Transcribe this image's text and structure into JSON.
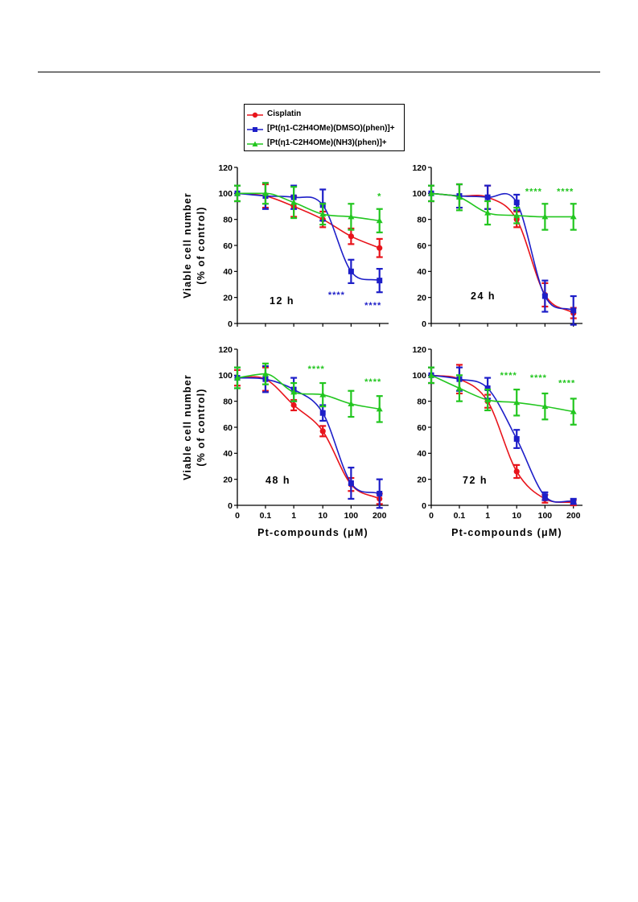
{
  "legend": {
    "items": [
      {
        "label": "Cisplatin",
        "color": "#e8141b",
        "marker": "circle"
      },
      {
        "label": "[Pt(η1-C2H4OMe)(DMSO)(phen)]+",
        "color": "#1d1ec8",
        "marker": "square"
      },
      {
        "label": "[Pt(η1-C2H4OMe)(NH3)(phen)]+",
        "color": "#22c61f",
        "marker": "triangle"
      }
    ]
  },
  "chart_data": [
    {
      "type": "line",
      "panel_label": "12 h",
      "x": [
        "0",
        "0.1",
        "1",
        "10",
        "100",
        "200"
      ],
      "ylabel": "Viable cell number (% of control)",
      "xlabel": "",
      "ylim": [
        0,
        120
      ],
      "yticks": [
        0,
        20,
        40,
        60,
        80,
        100,
        120
      ],
      "series": [
        {
          "name": "Cisplatin",
          "values": [
            100,
            98,
            90,
            80,
            67,
            58
          ],
          "errors": [
            6,
            9,
            8,
            6,
            6,
            7
          ]
        },
        {
          "name": "[Pt(η1-C2H4OMe)(DMSO)(phen)]+",
          "values": [
            100,
            98,
            97,
            91,
            40,
            33
          ],
          "errors": [
            6,
            10,
            9,
            12,
            9,
            9
          ]
        },
        {
          "name": "[Pt(η1-C2H4OMe)(NH3)(phen)]+",
          "values": [
            100,
            100,
            93,
            84,
            82,
            79
          ],
          "errors": [
            6,
            8,
            12,
            8,
            10,
            9
          ]
        }
      ],
      "annotations": [
        {
          "text": "*",
          "x": "200",
          "color": "#22c61f"
        },
        {
          "text": "****",
          "x": "100",
          "color": "#1d1ec8"
        },
        {
          "text": "****",
          "x": "200",
          "color": "#1d1ec8"
        }
      ]
    },
    {
      "type": "line",
      "panel_label": "24 h",
      "x": [
        "0",
        "0.1",
        "1",
        "10",
        "100",
        "200"
      ],
      "ylabel": "",
      "xlabel": "",
      "ylim": [
        0,
        120
      ],
      "yticks": [
        0,
        20,
        40,
        60,
        80,
        100,
        120
      ],
      "series": [
        {
          "name": "Cisplatin",
          "values": [
            100,
            98,
            97,
            80,
            22,
            8
          ],
          "errors": [
            6,
            9,
            9,
            6,
            9,
            4
          ]
        },
        {
          "name": "[Pt(η1-C2H4OMe)(DMSO)(phen)]+",
          "values": [
            100,
            98,
            97,
            93,
            21,
            10
          ],
          "errors": [
            6,
            9,
            9,
            6,
            12,
            11
          ]
        },
        {
          "name": "[Pt(η1-C2H4OMe)(NH3)(phen)]+",
          "values": [
            100,
            97,
            85,
            83,
            82,
            82
          ],
          "errors": [
            6,
            10,
            9,
            6,
            10,
            10
          ]
        }
      ],
      "annotations": [
        {
          "text": "****",
          "x": "100",
          "color": "#22c61f"
        },
        {
          "text": "****",
          "x": "200",
          "color": "#22c61f"
        }
      ]
    },
    {
      "type": "line",
      "panel_label": "48 h",
      "x": [
        "0",
        "0.1",
        "1",
        "10",
        "100",
        "200"
      ],
      "xlabel": "Pt-compounds (μM)",
      "ylabel": "Viable cell number (% of control)",
      "ylim": [
        0,
        120
      ],
      "yticks": [
        0,
        20,
        40,
        60,
        80,
        100,
        120
      ],
      "series": [
        {
          "name": "Cisplatin",
          "values": [
            98,
            97,
            77,
            57,
            16,
            5
          ],
          "errors": [
            6,
            9,
            4,
            4,
            5,
            4
          ]
        },
        {
          "name": "[Pt(η1-C2H4OMe)(DMSO)(phen)]+",
          "values": [
            98,
            97,
            89,
            71,
            17,
            9
          ],
          "errors": [
            8,
            10,
            9,
            6,
            12,
            11
          ]
        },
        {
          "name": "[Pt(η1-C2H4OMe)(NH3)(phen)]+",
          "values": [
            98,
            101,
            87,
            85,
            78,
            74
          ],
          "errors": [
            8,
            8,
            7,
            9,
            10,
            10
          ]
        }
      ],
      "annotations": [
        {
          "text": "****",
          "x": "10",
          "color": "#22c61f"
        },
        {
          "text": "****",
          "x": "200",
          "color": "#22c61f"
        }
      ]
    },
    {
      "type": "line",
      "panel_label": "72 h",
      "x": [
        "0",
        "0.1",
        "1",
        "10",
        "100",
        "200"
      ],
      "xlabel": "Pt-compounds (μM)",
      "ylabel": "",
      "ylim": [
        0,
        120
      ],
      "yticks": [
        0,
        20,
        40,
        60,
        80,
        100,
        120
      ],
      "series": [
        {
          "name": "Cisplatin",
          "values": [
            100,
            97,
            80,
            26,
            5,
            2
          ],
          "errors": [
            6,
            11,
            5,
            5,
            3,
            2
          ]
        },
        {
          "name": "[Pt(η1-C2H4OMe)(DMSO)(phen)]+",
          "values": [
            100,
            97,
            90,
            51,
            7,
            3
          ],
          "errors": [
            6,
            9,
            8,
            7,
            3,
            2
          ]
        },
        {
          "name": "[Pt(η1-C2H4OMe)(NH3)(phen)]+",
          "values": [
            100,
            90,
            81,
            79,
            76,
            72
          ],
          "errors": [
            6,
            10,
            8,
            10,
            10,
            10
          ]
        }
      ],
      "annotations": [
        {
          "text": "****",
          "x": "10",
          "color": "#22c61f"
        },
        {
          "text": "****",
          "x": "100",
          "color": "#22c61f"
        },
        {
          "text": "****",
          "x": "200",
          "color": "#22c61f"
        }
      ]
    }
  ]
}
